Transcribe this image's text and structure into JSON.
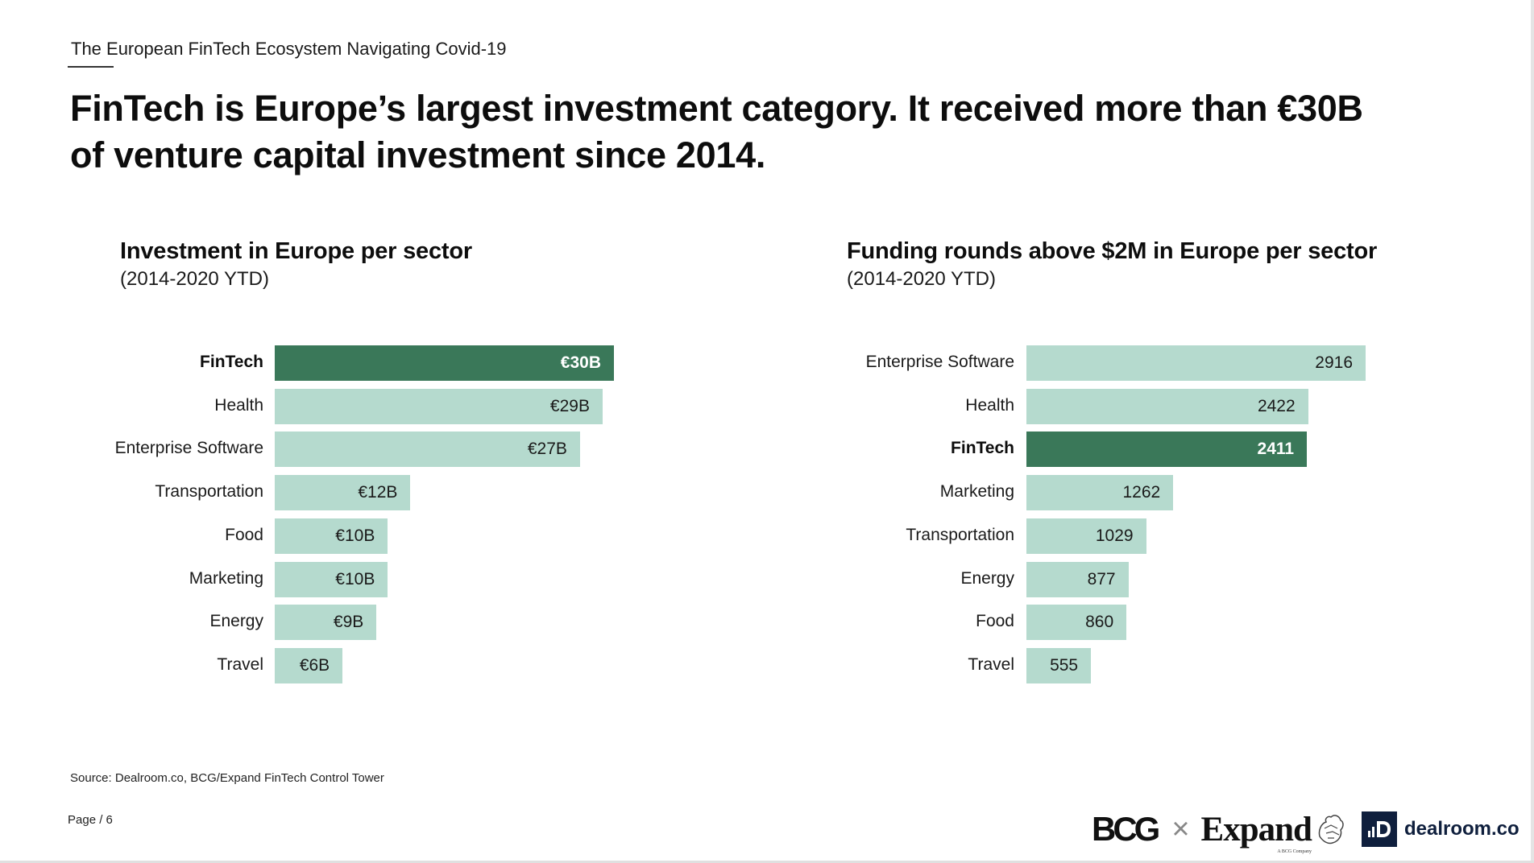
{
  "header": {
    "section_title": "The European FinTech Ecosystem Navigating Covid-19",
    "main_title_line1": "FinTech is Europe’s largest investment category. It received more than €30B",
    "main_title_line2": "of venture capital investment since 2014."
  },
  "colors": {
    "highlight_bar": "#3a7859",
    "default_bar": "#b5dace"
  },
  "chart_data": [
    {
      "type": "bar",
      "orientation": "horizontal",
      "title": "Investment in Europe per sector",
      "subtitle": "(2014-2020 YTD)",
      "unit": "€B",
      "categories": [
        "FinTech",
        "Health",
        "Enterprise Software",
        "Transportation",
        "Food",
        "Marketing",
        "Energy",
        "Travel"
      ],
      "values": [
        30,
        29,
        27,
        12,
        10,
        10,
        9,
        6
      ],
      "labels": [
        "€30B",
        "€29B",
        "€27B",
        "€12B",
        "€10B",
        "€10B",
        "€9B",
        "€6B"
      ],
      "highlight": "FinTech",
      "xlabel": "",
      "ylabel": "",
      "xlim": [
        0,
        30
      ],
      "grid": false,
      "legend": "none"
    },
    {
      "type": "bar",
      "orientation": "horizontal",
      "title": "Funding rounds above $2M in Europe per sector",
      "subtitle": "(2014-2020 YTD)",
      "unit": "rounds",
      "categories": [
        "Enterprise Software",
        "Health",
        "FinTech",
        "Marketing",
        "Transportation",
        "Energy",
        "Food",
        "Travel"
      ],
      "values": [
        2916,
        2422,
        2411,
        1262,
        1029,
        877,
        860,
        555
      ],
      "labels": [
        "2916",
        "2422",
        "2411",
        "1262",
        "1029",
        "877",
        "860",
        "555"
      ],
      "highlight": "FinTech",
      "xlabel": "",
      "ylabel": "",
      "xlim": [
        0,
        2916
      ],
      "grid": false,
      "legend": "none"
    }
  ],
  "footer": {
    "source": "Source: Dealroom.co, BCG/Expand FinTech Control Tower",
    "page": "Page / 6",
    "logos": {
      "bcg": "BCG",
      "times": "×",
      "expand": "Expand",
      "expand_sub": "A BCG Company",
      "dealroom_mark": "▐D",
      "dealroom": "dealroom.co"
    }
  }
}
